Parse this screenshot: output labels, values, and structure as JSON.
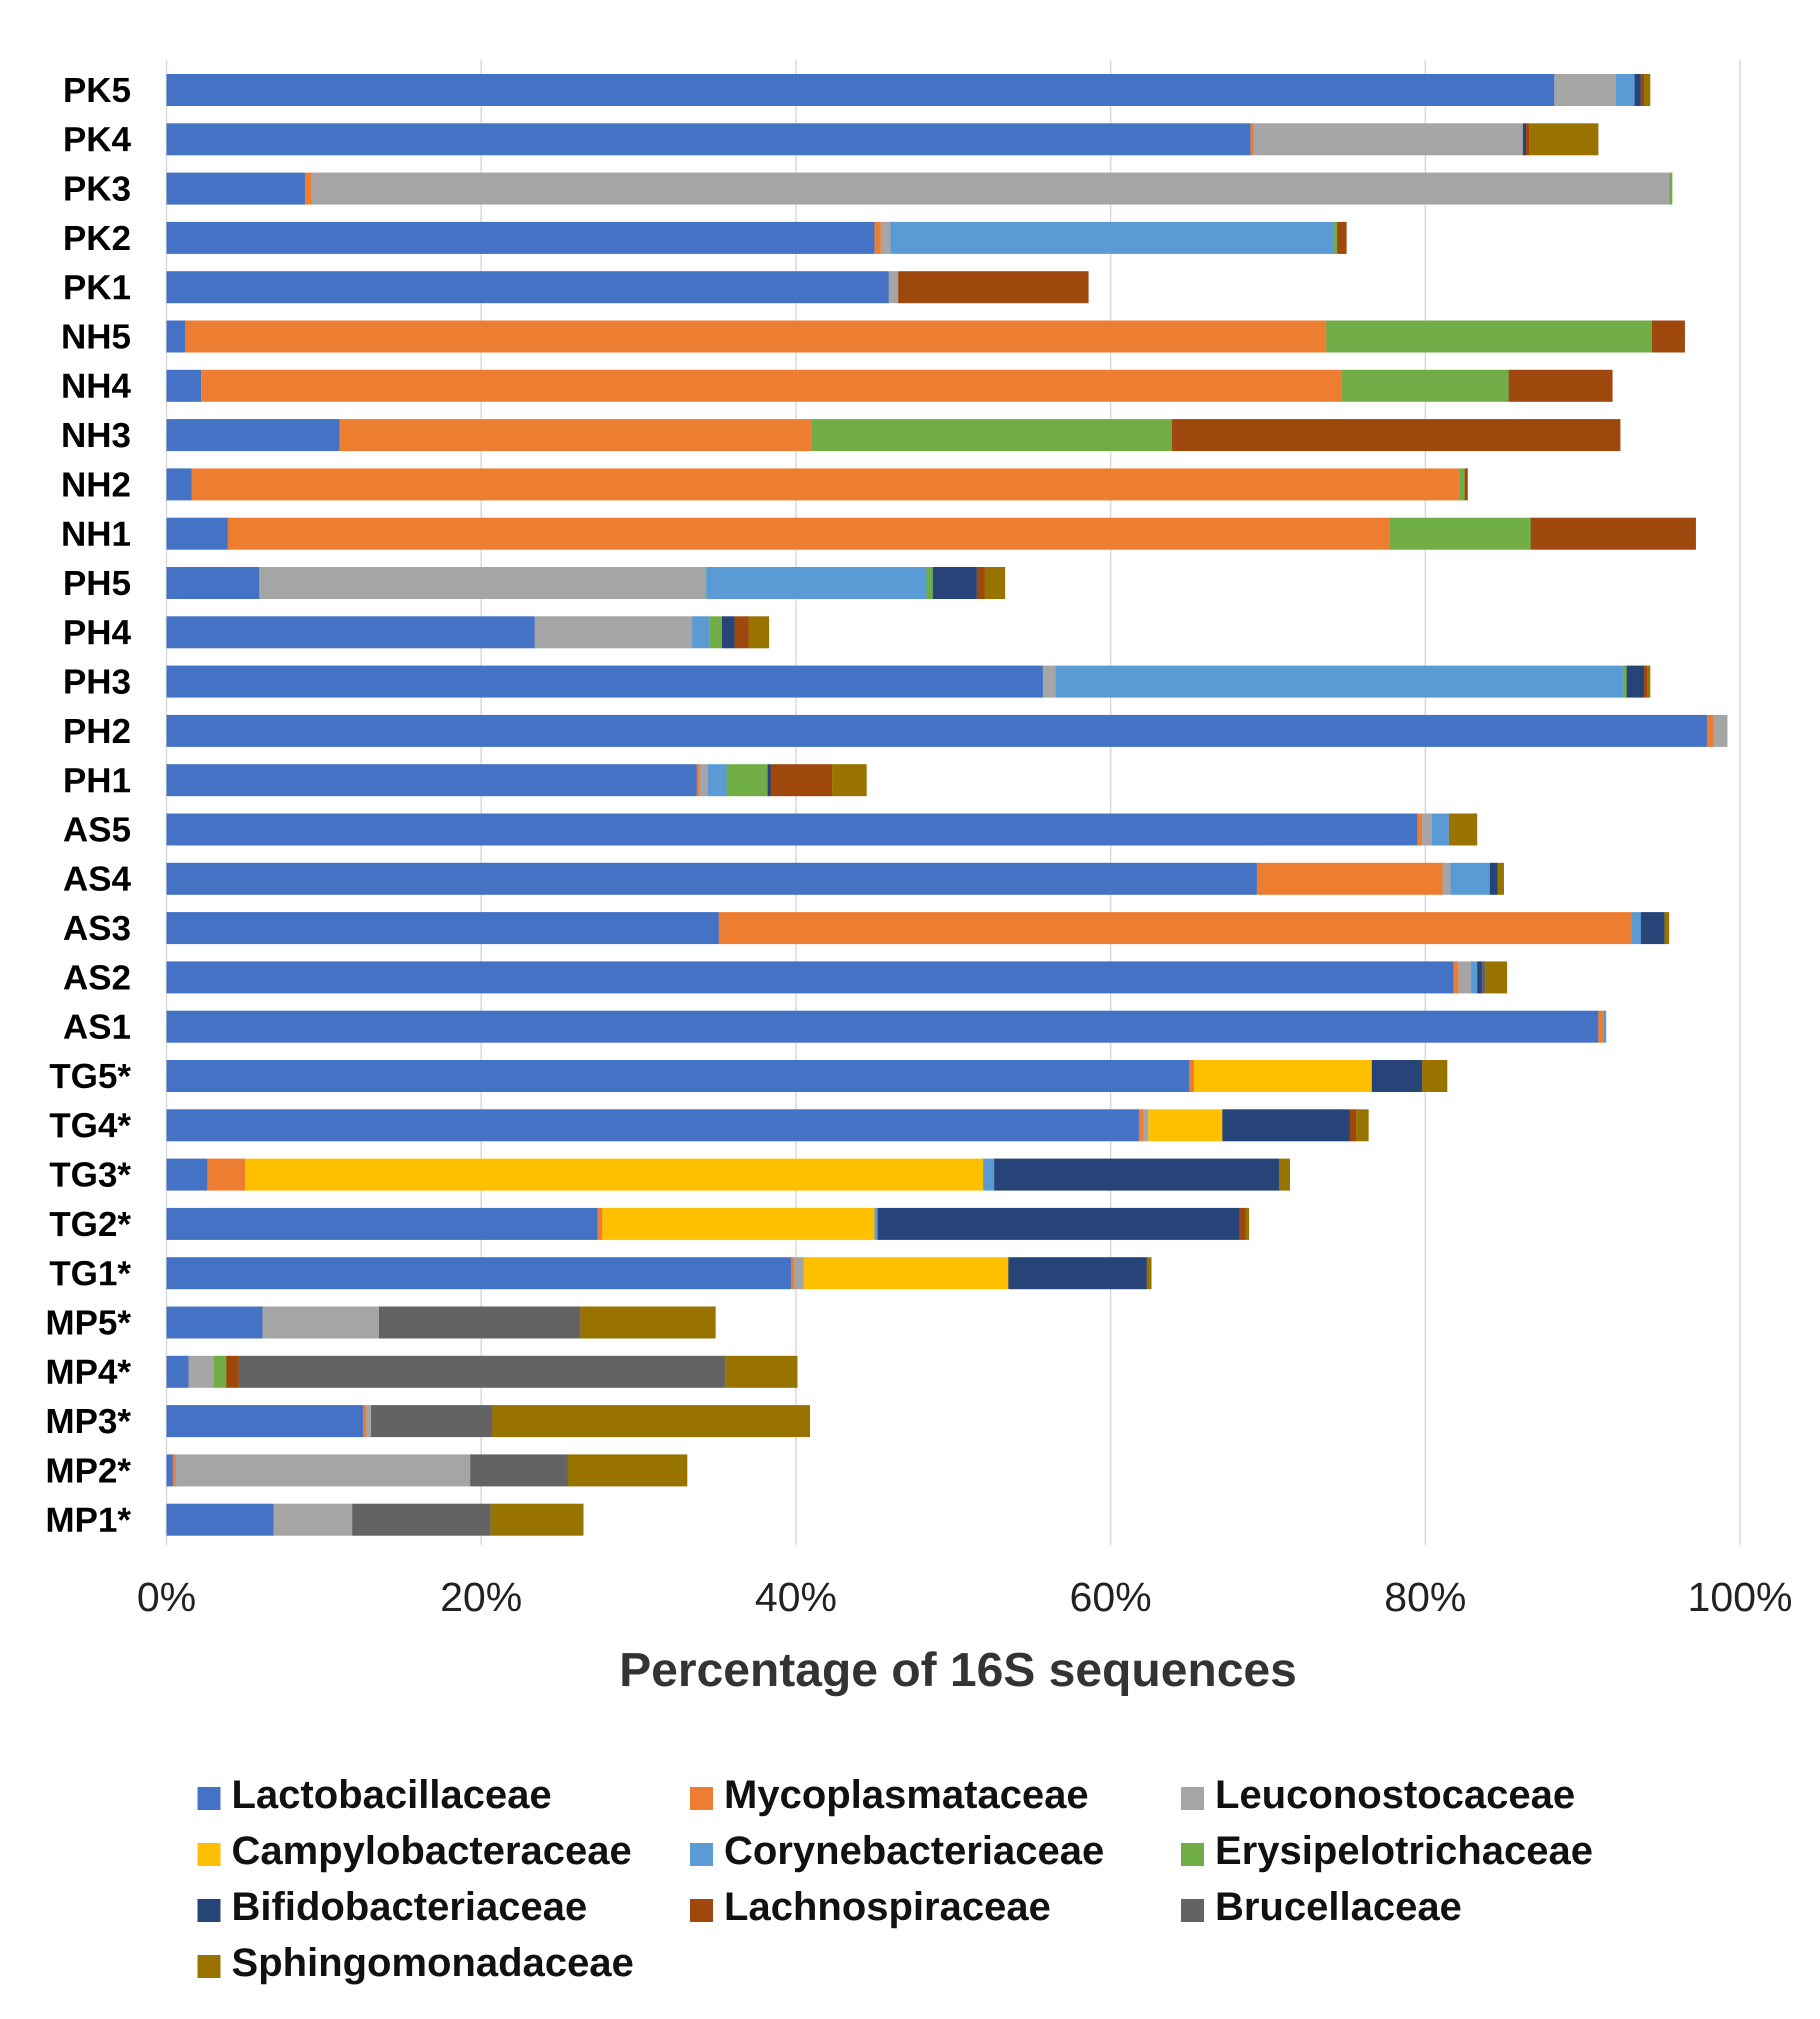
{
  "chart_data": {
    "type": "bar",
    "orientation": "horizontal",
    "stacked": true,
    "xlabel": "Percentage of 16S sequences",
    "xlim": [
      0,
      100
    ],
    "x_ticks": [
      "0%",
      "20%",
      "40%",
      "60%",
      "80%",
      "100%"
    ],
    "grid": "vertical",
    "legend_position": "bottom",
    "categories": [
      "PK5",
      "PK4",
      "PK3",
      "PK2",
      "PK1",
      "NH5",
      "NH4",
      "NH3",
      "NH2",
      "NH1",
      "PH5",
      "PH4",
      "PH3",
      "PH2",
      "PH1",
      "AS5",
      "AS4",
      "AS3",
      "AS2",
      "AS1",
      "TG5*",
      "TG4*",
      "TG3*",
      "TG2*",
      "TG1*",
      "MP5*",
      "MP4*",
      "MP3*",
      "MP2*",
      "MP1*"
    ],
    "series": [
      {
        "name": "Lactobacillaceae",
        "color": "#4472C4",
        "values": [
          88.2,
          68.9,
          8.8,
          45.0,
          45.9,
          1.2,
          2.2,
          11.0,
          1.6,
          3.9,
          5.9,
          23.4,
          55.7,
          97.9,
          33.7,
          79.5,
          69.3,
          35.1,
          81.8,
          91.0,
          65.0,
          61.8,
          2.6,
          27.4,
          39.7,
          6.1,
          1.4,
          12.5,
          0.4,
          6.8
        ]
      },
      {
        "name": "Mycoplasmataceae",
        "color": "#ED7D31",
        "values": [
          0,
          0.2,
          0.4,
          0.4,
          0,
          72.5,
          72.5,
          30.0,
          80.6,
          73.8,
          0,
          0,
          0,
          0.4,
          0.2,
          0.3,
          11.8,
          58.0,
          0.3,
          0.3,
          0.3,
          0.3,
          2.4,
          0.3,
          0.2,
          0,
          0,
          0.2,
          0.2,
          0
        ]
      },
      {
        "name": "Leuconostocaceae",
        "color": "#A5A5A5",
        "values": [
          3.9,
          17.1,
          86.3,
          0.6,
          0.6,
          0,
          0,
          0,
          0,
          0,
          28.4,
          10.0,
          0.8,
          0.9,
          0.5,
          0.6,
          0.5,
          0,
          0.8,
          0,
          0,
          0.3,
          0,
          0,
          0.6,
          7.4,
          1.6,
          0.3,
          18.7,
          5.0
        ]
      },
      {
        "name": "Campylobacteraceae",
        "color": "#FFC000",
        "values": [
          0,
          0,
          0,
          0,
          0,
          0,
          0,
          0,
          0,
          0,
          0,
          0,
          0,
          0,
          0,
          0,
          0,
          0,
          0,
          0,
          11.3,
          4.7,
          46.9,
          17.3,
          13.0,
          0,
          0,
          0,
          0,
          0
        ]
      },
      {
        "name": "Corynebacteriaceae",
        "color": "#5B9BD5",
        "values": [
          1.2,
          0,
          0,
          28.2,
          0,
          0,
          0,
          0,
          0,
          0,
          14.0,
          1.1,
          36.1,
          0,
          1.2,
          1.1,
          2.5,
          0.6,
          0.4,
          0.2,
          0,
          0,
          0.7,
          0.2,
          0,
          0,
          0,
          0,
          0,
          0
        ]
      },
      {
        "name": "Erysipelotrichaceae",
        "color": "#70AD47",
        "values": [
          0,
          0,
          0.2,
          0.2,
          0,
          20.7,
          10.6,
          22.9,
          0.3,
          9.0,
          0.4,
          0.8,
          0.2,
          0,
          2.6,
          0,
          0,
          0,
          0,
          0,
          0,
          0,
          0,
          0,
          0,
          0,
          0.8,
          0,
          0,
          0
        ]
      },
      {
        "name": "Bifidobacteriaceae",
        "color": "#264478",
        "values": [
          0.4,
          0.2,
          0,
          0,
          0,
          0,
          0,
          0,
          0,
          0,
          2.8,
          0.8,
          1.1,
          0,
          0.2,
          0,
          0.5,
          1.5,
          0.3,
          0,
          3.2,
          8.1,
          18.1,
          23.0,
          8.8,
          0,
          0,
          0,
          0,
          0
        ]
      },
      {
        "name": "Lachnospiraceae",
        "color": "#9E480E",
        "values": [
          0.2,
          0.2,
          0,
          0.6,
          12.1,
          2.1,
          6.6,
          28.5,
          0.2,
          10.5,
          0.5,
          0.9,
          0.2,
          0,
          3.9,
          0,
          0,
          0,
          0,
          0,
          0,
          0.4,
          0,
          0.4,
          0,
          0,
          0.8,
          0,
          0,
          0
        ]
      },
      {
        "name": "Brucellaceae",
        "color": "#636363",
        "values": [
          0,
          0,
          0,
          0,
          0,
          0,
          0,
          0,
          0,
          0,
          0,
          0,
          0,
          0,
          0,
          0,
          0,
          0,
          0.2,
          0,
          0,
          0,
          0,
          0,
          0,
          12.8,
          30.9,
          7.7,
          6.2,
          8.8
        ]
      },
      {
        "name": "Sphingomonadaceae",
        "color": "#997300",
        "values": [
          0.4,
          4.4,
          0,
          0,
          0,
          0,
          0,
          0,
          0,
          0,
          1.3,
          1.3,
          0.2,
          0,
          2.2,
          1.8,
          0.4,
          0.3,
          1.4,
          0,
          1.6,
          0.8,
          0.7,
          0.2,
          0.3,
          8.6,
          4.6,
          20.2,
          7.6,
          5.9
        ]
      }
    ]
  }
}
